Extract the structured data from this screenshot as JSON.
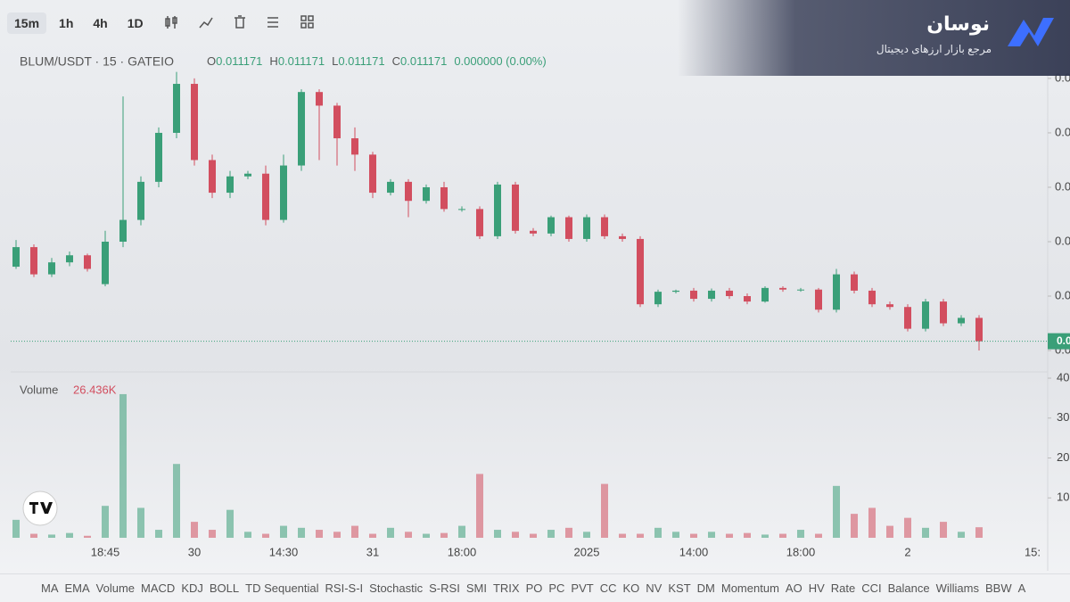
{
  "toolbar": {
    "intervals": [
      "15m",
      "1h",
      "4h",
      "1D"
    ]
  },
  "brand": {
    "name": "نوسان",
    "tagline": "مرجع بازار ارزهای دیجیتال"
  },
  "indicator_bar": [
    "MA",
    "EMA",
    "Volume",
    "MACD",
    "KDJ",
    "BOLL",
    "TD Sequential",
    "RSI-S-I",
    "Stochastic",
    "S-RSI",
    "SMI",
    "TRIX",
    "PO",
    "PC",
    "PVT",
    "CC",
    "KO",
    "NV",
    "KST",
    "DM",
    "Momentum",
    "AO",
    "HV",
    "Rate",
    "CCI",
    "Balance",
    "Williams",
    "BBW",
    "A"
  ],
  "chart_data": {
    "type": "candlestick",
    "title": "BLUM/USDT · 15 · GATEIO",
    "ohlc_readout": [
      {
        "key": "O",
        "text": "0.011171"
      },
      {
        "key": "H",
        "text": "0.011171"
      },
      {
        "key": "L",
        "text": "0.011171"
      },
      {
        "key": "C",
        "text": "0.011171"
      }
    ],
    "change": "0.000000 (0.00%)",
    "up_color": "#3a9f78",
    "down_color": "#d24e5f",
    "categories": [
      null,
      null,
      null,
      null,
      null,
      "18:45",
      null,
      null,
      null,
      null,
      "30",
      null,
      null,
      null,
      null,
      "14:30",
      null,
      null,
      null,
      null,
      "31",
      null,
      null,
      null,
      null,
      "18:00",
      null,
      null,
      null,
      null,
      null,
      null,
      "2025",
      null,
      null,
      null,
      null,
      null,
      "14:00",
      null,
      null,
      null,
      null,
      null,
      "18:00",
      null,
      null,
      null,
      null,
      null,
      "2",
      null,
      null,
      null,
      null,
      null,
      null,
      "15:"
    ],
    "open": [
      0.01254,
      0.0129,
      0.0124,
      0.01262,
      0.01275,
      0.01222,
      0.013,
      0.0134,
      0.0141,
      0.015,
      0.0159,
      0.0145,
      0.0139,
      0.0142,
      0.01425,
      0.0134,
      0.0144,
      0.01575,
      0.0155,
      0.0149,
      0.0146,
      0.0139,
      0.0141,
      0.01375,
      0.014,
      0.0136,
      0.0136,
      0.0131,
      0.01405,
      0.0132,
      0.01315,
      0.01345,
      0.01305,
      0.01345,
      0.0131,
      0.01305,
      0.01185,
      0.01208,
      0.0121,
      0.01195,
      0.0121,
      0.012,
      0.0119,
      0.01215,
      0.01212,
      0.01212,
      0.01175,
      0.0124,
      0.0121,
      0.01185,
      0.0118,
      0.0114,
      0.0119,
      0.0115,
      0.0116,
      null,
      null,
      null
    ],
    "high": [
      0.01303,
      0.01295,
      0.0127,
      0.01282,
      0.01278,
      0.0132,
      0.01567,
      0.0142,
      0.0151,
      0.01612,
      0.016,
      0.0146,
      0.0143,
      0.0143,
      0.0144,
      0.0146,
      0.0158,
      0.0158,
      0.01555,
      0.0151,
      0.01465,
      0.01415,
      0.01415,
      0.01405,
      0.0141,
      0.01365,
      0.01365,
      0.0141,
      0.0141,
      0.01325,
      0.01348,
      0.01348,
      0.0135,
      0.0135,
      0.01315,
      0.0131,
      0.01212,
      0.01212,
      0.01215,
      0.01214,
      0.01215,
      0.01205,
      0.01218,
      0.01218,
      0.01215,
      0.01215,
      0.0125,
      0.01245,
      0.01215,
      0.0119,
      0.01185,
      0.01195,
      0.01195,
      0.01165,
      0.01165,
      null,
      null,
      null
    ],
    "low": [
      0.0125,
      0.01235,
      0.01235,
      0.01255,
      0.01245,
      0.01218,
      0.0129,
      0.0133,
      0.014,
      0.0149,
      0.0144,
      0.0138,
      0.0138,
      0.01415,
      0.0133,
      0.01335,
      0.0143,
      0.0145,
      0.0144,
      0.0143,
      0.0138,
      0.01385,
      0.01345,
      0.0137,
      0.01355,
      0.01355,
      0.01305,
      0.01305,
      0.01315,
      0.0131,
      0.0131,
      0.013,
      0.013,
      0.01305,
      0.013,
      0.0118,
      0.0118,
      0.01205,
      0.0119,
      0.0119,
      0.01195,
      0.01185,
      0.01188,
      0.01208,
      0.01208,
      0.0117,
      0.0117,
      0.01205,
      0.0118,
      0.01175,
      0.01135,
      0.01135,
      0.01145,
      0.01145,
      0.011,
      null,
      null,
      null
    ],
    "close": [
      0.0129,
      0.0124,
      0.01262,
      0.01275,
      0.0125,
      0.013,
      0.0134,
      0.0141,
      0.015,
      0.0159,
      0.0145,
      0.0139,
      0.0142,
      0.01425,
      0.0134,
      0.0144,
      0.01575,
      0.0155,
      0.0149,
      0.0146,
      0.0139,
      0.0141,
      0.01375,
      0.014,
      0.0136,
      0.0136,
      0.0131,
      0.01405,
      0.0132,
      0.01315,
      0.01345,
      0.01305,
      0.01345,
      0.0131,
      0.01305,
      0.01185,
      0.01208,
      0.0121,
      0.01195,
      0.0121,
      0.012,
      0.0119,
      0.01215,
      0.01212,
      0.01212,
      0.01175,
      0.0124,
      0.0121,
      0.01185,
      0.0118,
      0.0114,
      0.0119,
      0.0115,
      0.0116,
      0.01117,
      null,
      null,
      null
    ],
    "ylim": [
      0.01064,
      0.01613
    ],
    "yticks": [
      {
        "value": 0.011,
        "label": "0.0"
      },
      {
        "value": 0.012,
        "label": "0.0"
      },
      {
        "value": 0.013,
        "label": "0.0"
      },
      {
        "value": 0.014,
        "label": "0.0"
      },
      {
        "value": 0.015,
        "label": "0.0"
      },
      {
        "value": 0.016,
        "label": "0.0"
      }
    ],
    "last_price": 0.011171,
    "last_price_label": "0.0",
    "volume": {
      "name": "Volume",
      "last_label": "26.436K",
      "values": [
        45,
        10,
        8,
        12,
        5,
        80,
        360,
        75,
        20,
        185,
        40,
        20,
        70,
        15,
        10,
        30,
        25,
        20,
        15,
        30,
        10,
        25,
        15,
        10,
        12,
        30,
        160,
        20,
        15,
        10,
        20,
        25,
        15,
        135,
        10,
        10,
        25,
        15,
        10,
        15,
        10,
        12,
        8,
        10,
        20,
        10,
        130,
        60,
        75,
        30,
        50,
        25,
        40,
        15,
        26.436,
        null,
        null,
        null
      ],
      "ylim": [
        0,
        409
      ],
      "yticks": [
        {
          "value": 100,
          "label": "10"
        },
        {
          "value": 200,
          "label": "20"
        },
        {
          "value": 300,
          "label": "30"
        },
        {
          "value": 400,
          "label": "40"
        }
      ]
    }
  }
}
